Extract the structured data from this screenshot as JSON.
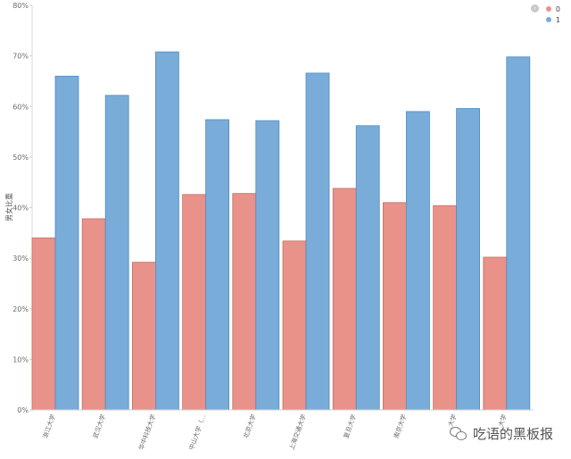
{
  "chart_data": {
    "type": "bar",
    "ylabel": "男女比重",
    "ylim": [
      0,
      80
    ],
    "yticks": [
      "0%",
      "10%",
      "20%",
      "30%",
      "40%",
      "50%",
      "60%",
      "70%",
      "80%"
    ],
    "categories": [
      "浙江大学",
      "武汉大学",
      "华中科技大学",
      "中山大学（…",
      "北京大学",
      "上海交通大学",
      "复旦大学",
      "南京大学",
      "…大学",
      "…大学"
    ],
    "series": [
      {
        "name": "0",
        "color": "#e8928a",
        "values": [
          34,
          37.8,
          29.2,
          42.6,
          42.8,
          33.4,
          43.8,
          41,
          40.4,
          30.2
        ]
      },
      {
        "name": "1",
        "color": "#79acd8",
        "values": [
          66,
          62.2,
          70.8,
          57.4,
          57.2,
          66.6,
          56.2,
          59,
          59.6,
          69.8
        ]
      }
    ],
    "legend_position": "top-right",
    "grid": false
  },
  "watermark": {
    "text": "吃语的黑板报",
    "icon": "wechat-icon"
  },
  "legend_nav_icon": "chevron-right-icon"
}
